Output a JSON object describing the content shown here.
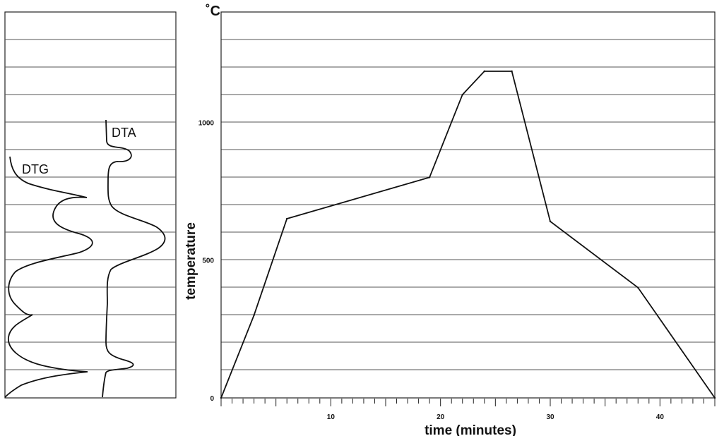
{
  "chart_data": [
    {
      "type": "line",
      "title": "",
      "series": [
        {
          "name": "DTG",
          "values": []
        },
        {
          "name": "DTA",
          "values": []
        }
      ],
      "grid": true
    },
    {
      "type": "line",
      "title": "",
      "xlabel": "time (minutes)",
      "ylabel": "temperature",
      "y_unit": "˚C",
      "xlim": [
        0,
        45
      ],
      "ylim": [
        0,
        1400
      ],
      "x_ticks": [
        10,
        20,
        30,
        40
      ],
      "y_ticks": [
        0,
        500,
        1000
      ],
      "grid": true,
      "series": [
        {
          "x": [
            0,
            3,
            6,
            19,
            22,
            24,
            26.5,
            30,
            38,
            45
          ],
          "y": [
            0,
            300,
            650,
            800,
            1100,
            1185,
            1185,
            640,
            400,
            0
          ]
        }
      ]
    }
  ]
}
